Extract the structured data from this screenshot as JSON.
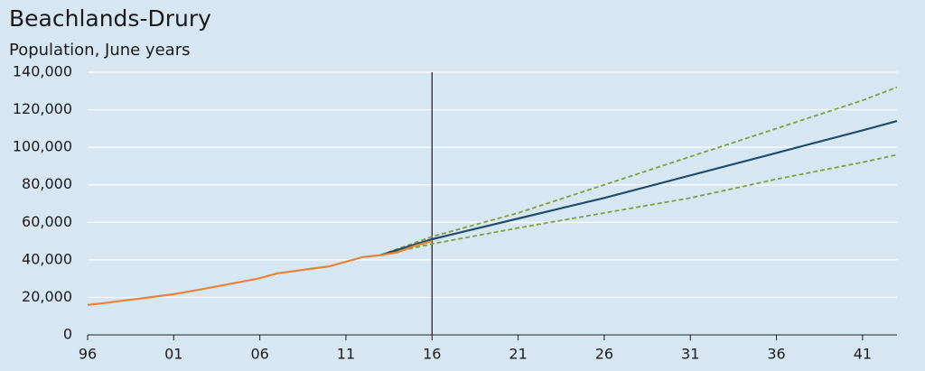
{
  "chart_data": {
    "type": "line",
    "title": "Beachlands-Drury",
    "subtitle": "Population, June years",
    "xlim": [
      1996,
      2043
    ],
    "xticks": [
      {
        "value": 1996,
        "label": "96"
      },
      {
        "value": 2001,
        "label": "01"
      },
      {
        "value": 2006,
        "label": "06"
      },
      {
        "value": 2011,
        "label": "11"
      },
      {
        "value": 2016,
        "label": "16"
      },
      {
        "value": 2021,
        "label": "21"
      },
      {
        "value": 2026,
        "label": "26"
      },
      {
        "value": 2031,
        "label": "31"
      },
      {
        "value": 2036,
        "label": "36"
      },
      {
        "value": 2041,
        "label": "41"
      }
    ],
    "ylim": [
      0,
      140000
    ],
    "yticks": [
      0,
      {
        "value": 20000,
        "label": "20,000"
      },
      {
        "value": 40000,
        "label": "40,000"
      },
      {
        "value": 60000,
        "label": "60,000"
      },
      {
        "value": 80000,
        "label": "80,000"
      },
      {
        "value": 100000,
        "label": "100,000"
      },
      {
        "value": 120000,
        "label": "120,000"
      },
      {
        "value": 140000,
        "label": "140,000"
      }
    ],
    "grid": true,
    "vline": 2016,
    "series": [
      {
        "color": "#7aa33a",
        "dashed": true,
        "x": [
          2013,
          2016,
          2021,
          2026,
          2031,
          2036,
          2041,
          2043
        ],
        "values": [
          42500,
          52400,
          65000,
          80000,
          95000,
          110000,
          125000,
          132000
        ]
      },
      {
        "color": "#7aa33a",
        "dashed": true,
        "x": [
          2013,
          2016,
          2021,
          2026,
          2031,
          2036,
          2041,
          2043
        ],
        "values": [
          42500,
          48500,
          57000,
          65000,
          73000,
          83000,
          92000,
          96000
        ]
      },
      {
        "color": "#1f4e6b",
        "dashed": false,
        "x": [
          2013,
          2016,
          2021,
          2026,
          2031,
          2036,
          2041,
          2043
        ],
        "values": [
          42500,
          51000,
          62000,
          73000,
          85000,
          97000,
          109000,
          114000
        ]
      },
      {
        "color": "#e8843a",
        "dashed": false,
        "x": [
          1996,
          1997,
          1998,
          1999,
          2000,
          2001,
          2002,
          2003,
          2004,
          2005,
          2006,
          2007,
          2008,
          2009,
          2010,
          2011,
          2012,
          2013,
          2014,
          2015,
          2016
        ],
        "values": [
          16000,
          17000,
          18200,
          19300,
          20500,
          21700,
          23300,
          25000,
          26700,
          28400,
          30200,
          32800,
          34000,
          35300,
          36500,
          39000,
          41500,
          42500,
          44000,
          47500,
          50000
        ]
      }
    ]
  }
}
